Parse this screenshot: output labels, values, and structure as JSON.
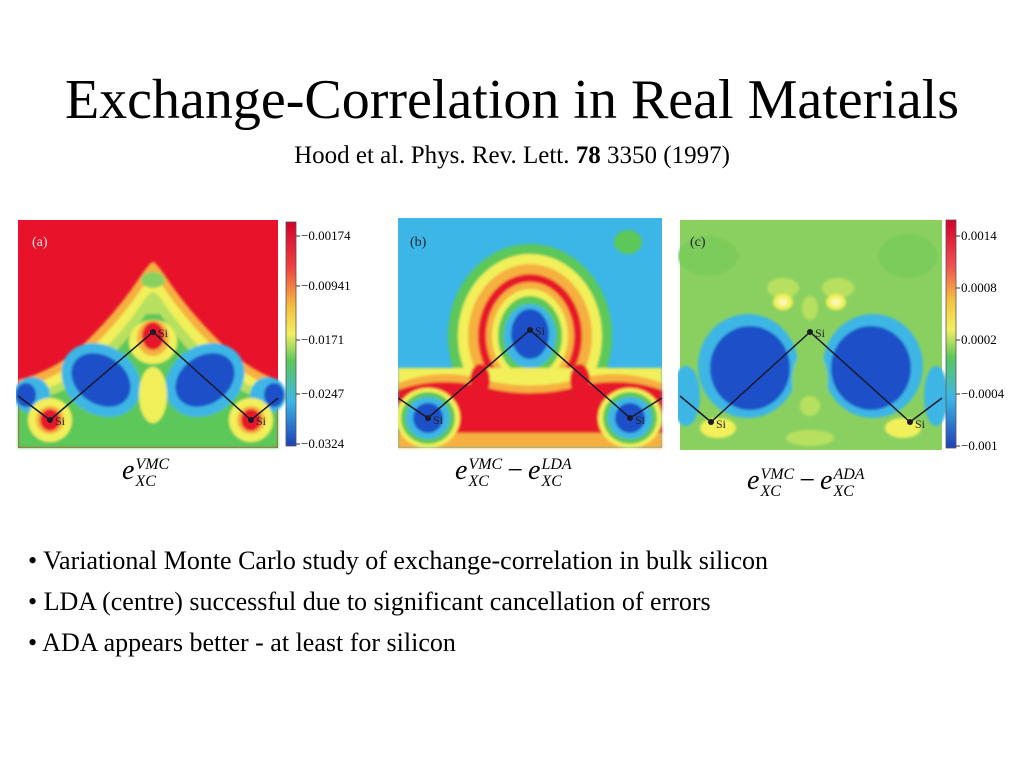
{
  "title": "Exchange-Correlation in Real Materials",
  "citation": {
    "authors": "Hood et al. Phys. Rev. Lett.",
    "volume": "78",
    "pages_year": "3350 (1997)"
  },
  "panels": [
    {
      "label": "(a)",
      "atom_labels": [
        "Si",
        "Si",
        "Si"
      ],
      "colorbar_ticks": [
        "−0.00174",
        "−0.00941",
        "−0.0171",
        "−0.0247",
        "−0.0324"
      ],
      "formula": {
        "base": "e",
        "sup": "VMC",
        "sub": "XC"
      }
    },
    {
      "label": "(b)",
      "atom_labels": [
        "Si",
        "Si",
        "Si"
      ],
      "formula": {
        "base": "e",
        "sup": "VMC",
        "sub": "XC",
        "minus": "−",
        "base2": "e",
        "sup2": "LDA",
        "sub2": "XC"
      }
    },
    {
      "label": "(c)",
      "atom_labels": [
        "Si",
        "Si",
        "Si"
      ],
      "colorbar_ticks": [
        "0.0014",
        "0.0008",
        "0.0002",
        "−0.0004",
        "−0.001"
      ],
      "formula": {
        "base": "e",
        "sup": "VMC",
        "sub": "XC",
        "minus": "−",
        "base2": "e",
        "sup2": "ADA",
        "sub2": "XC"
      }
    }
  ],
  "bullets": [
    "• Variational Monte Carlo study of exchange-correlation in bulk silicon",
    "• LDA (centre) successful due to significant cancellation of errors",
    "• ADA appears better - at least for silicon"
  ],
  "colors": {
    "red": "#e8132a",
    "yellow": "#f5f05a",
    "green": "#5cc85a",
    "cyan": "#3cb6e6",
    "blue": "#1e50c8",
    "line": "#1a1a2a"
  }
}
